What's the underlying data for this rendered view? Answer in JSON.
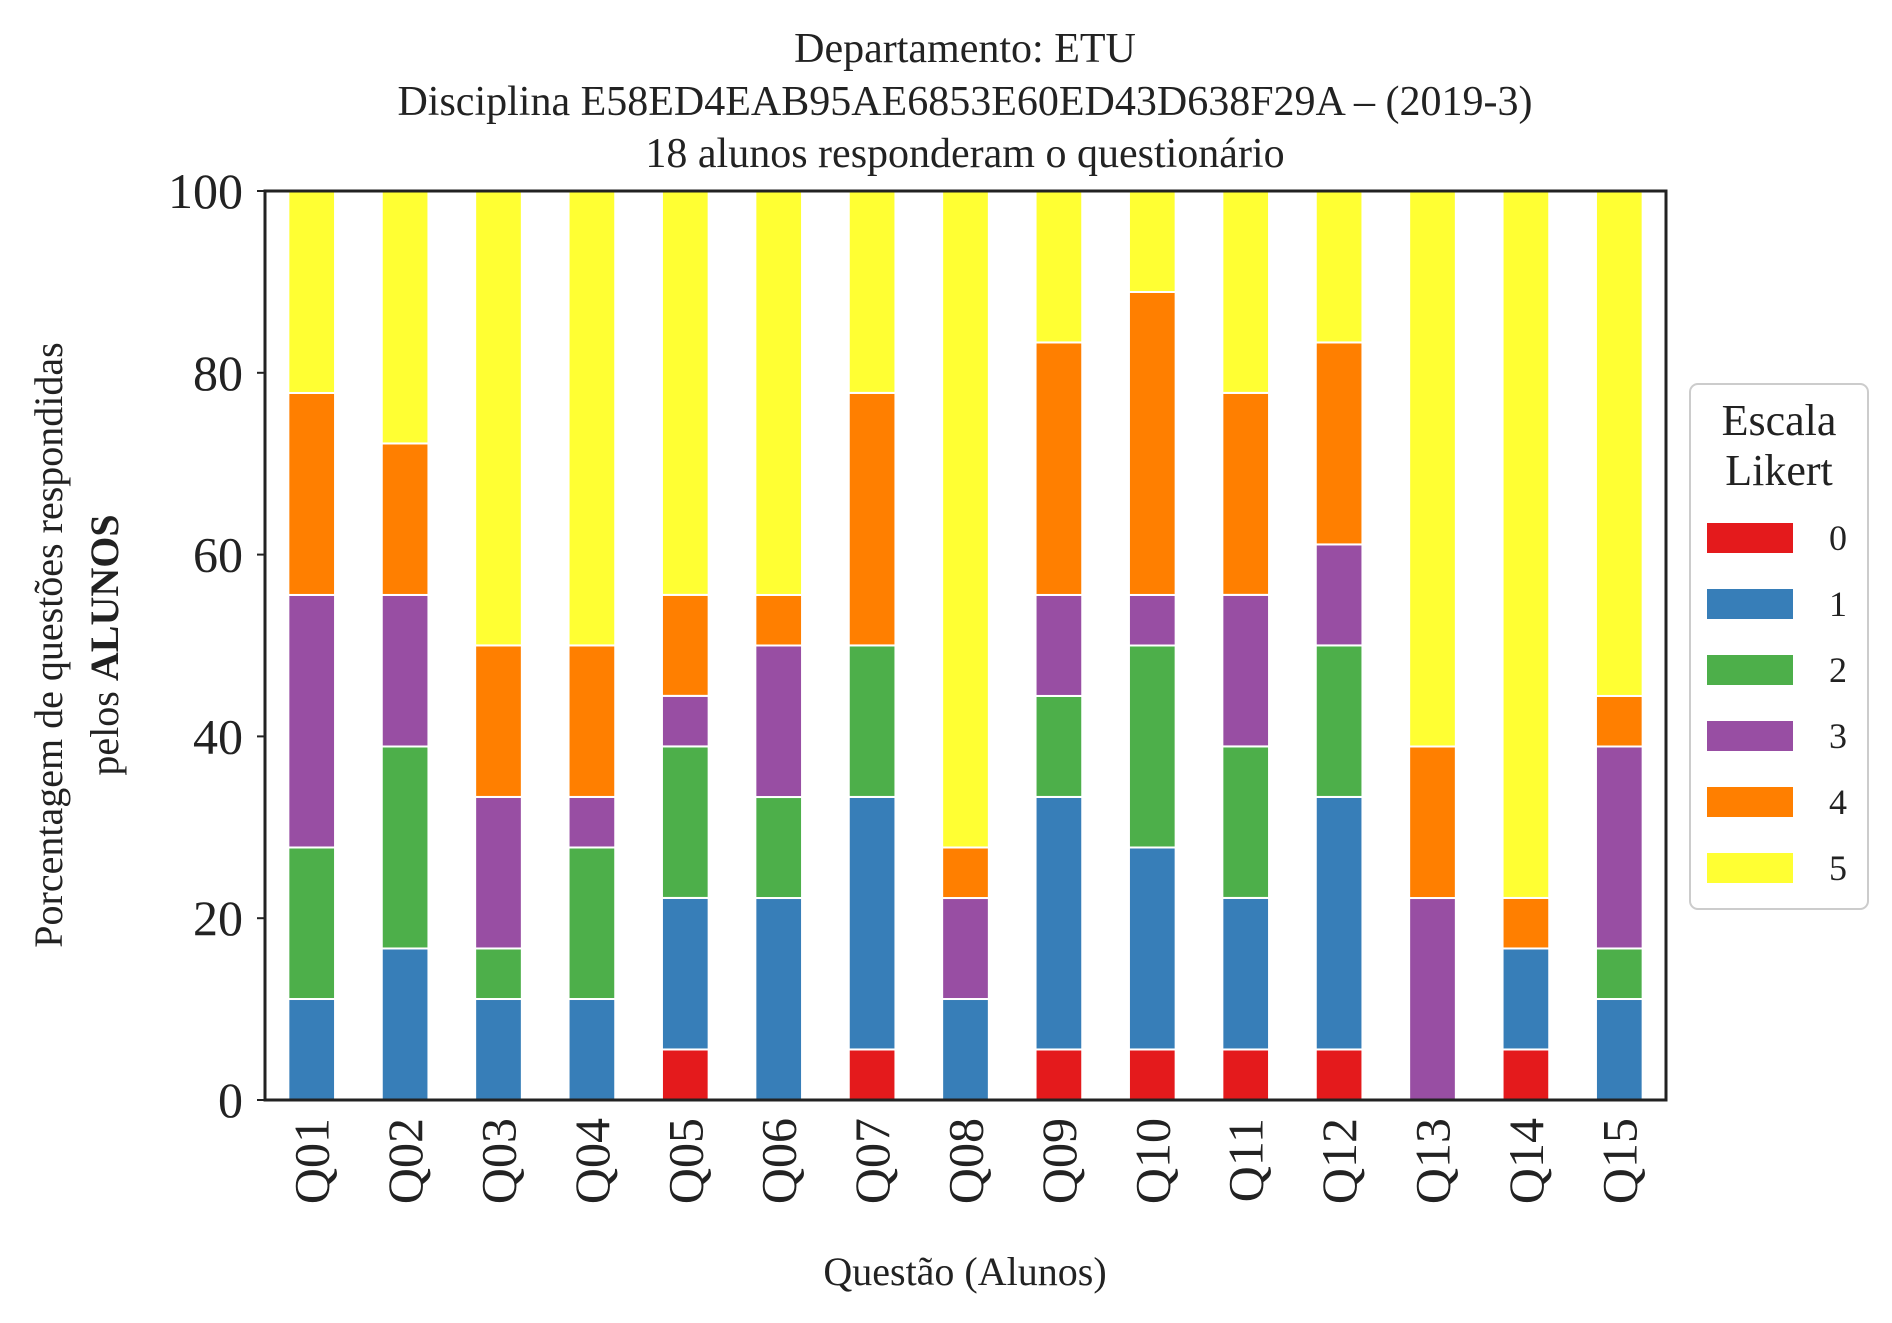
{
  "chart_data": {
    "type": "bar",
    "stacked": true,
    "title_lines": [
      "Departamento: ETU",
      "Disciplina E58ED4EAB95AE6853E60ED43D638F29A – (2019-3)",
      "18 alunos responderam o questionário"
    ],
    "xlabel": "Questão (Alunos)",
    "ylabel_line1": "Porcentagem de questões respondidas",
    "ylabel_line2_prefix": "pelos ",
    "ylabel_line2_bold": "ALUNOS",
    "ylim": [
      0,
      100
    ],
    "yticks": [
      "0",
      "20",
      "40",
      "60",
      "80",
      "100"
    ],
    "grid": false,
    "legend": {
      "title_line1": "Escala",
      "title_line2": "Likert",
      "position": "right"
    },
    "categories": [
      "Q01",
      "Q02",
      "Q03",
      "Q04",
      "Q05",
      "Q06",
      "Q07",
      "Q08",
      "Q09",
      "Q10",
      "Q11",
      "Q12",
      "Q13",
      "Q14",
      "Q15"
    ],
    "series": [
      {
        "name": "0",
        "color": "#e41a1c",
        "values": [
          0,
          0,
          0,
          0,
          5.56,
          0,
          5.56,
          0,
          5.56,
          5.56,
          5.56,
          5.56,
          0,
          5.56,
          0
        ]
      },
      {
        "name": "1",
        "color": "#377eb8",
        "values": [
          11.11,
          16.67,
          11.11,
          11.11,
          16.67,
          22.22,
          27.78,
          11.11,
          27.78,
          22.22,
          16.67,
          27.78,
          0,
          11.11,
          11.11
        ]
      },
      {
        "name": "2",
        "color": "#4daf4a",
        "values": [
          16.67,
          22.22,
          5.56,
          16.67,
          16.67,
          11.11,
          16.67,
          0,
          11.11,
          22.22,
          16.67,
          16.67,
          0,
          0,
          5.56
        ]
      },
      {
        "name": "3",
        "color": "#984ea3",
        "values": [
          27.78,
          16.67,
          16.67,
          5.56,
          5.56,
          16.67,
          0,
          11.11,
          11.11,
          5.56,
          16.67,
          11.11,
          22.22,
          0,
          22.22
        ]
      },
      {
        "name": "4",
        "color": "#ff7f00",
        "values": [
          22.22,
          16.67,
          16.67,
          16.67,
          11.11,
          5.56,
          27.78,
          5.56,
          27.78,
          33.33,
          22.22,
          22.22,
          16.67,
          5.56,
          5.56
        ]
      },
      {
        "name": "5",
        "color": "#ffff33",
        "values": [
          22.22,
          27.78,
          50.0,
          50.0,
          44.44,
          44.44,
          22.22,
          72.22,
          16.67,
          11.11,
          22.22,
          16.67,
          61.11,
          77.78,
          55.56
        ]
      }
    ]
  }
}
